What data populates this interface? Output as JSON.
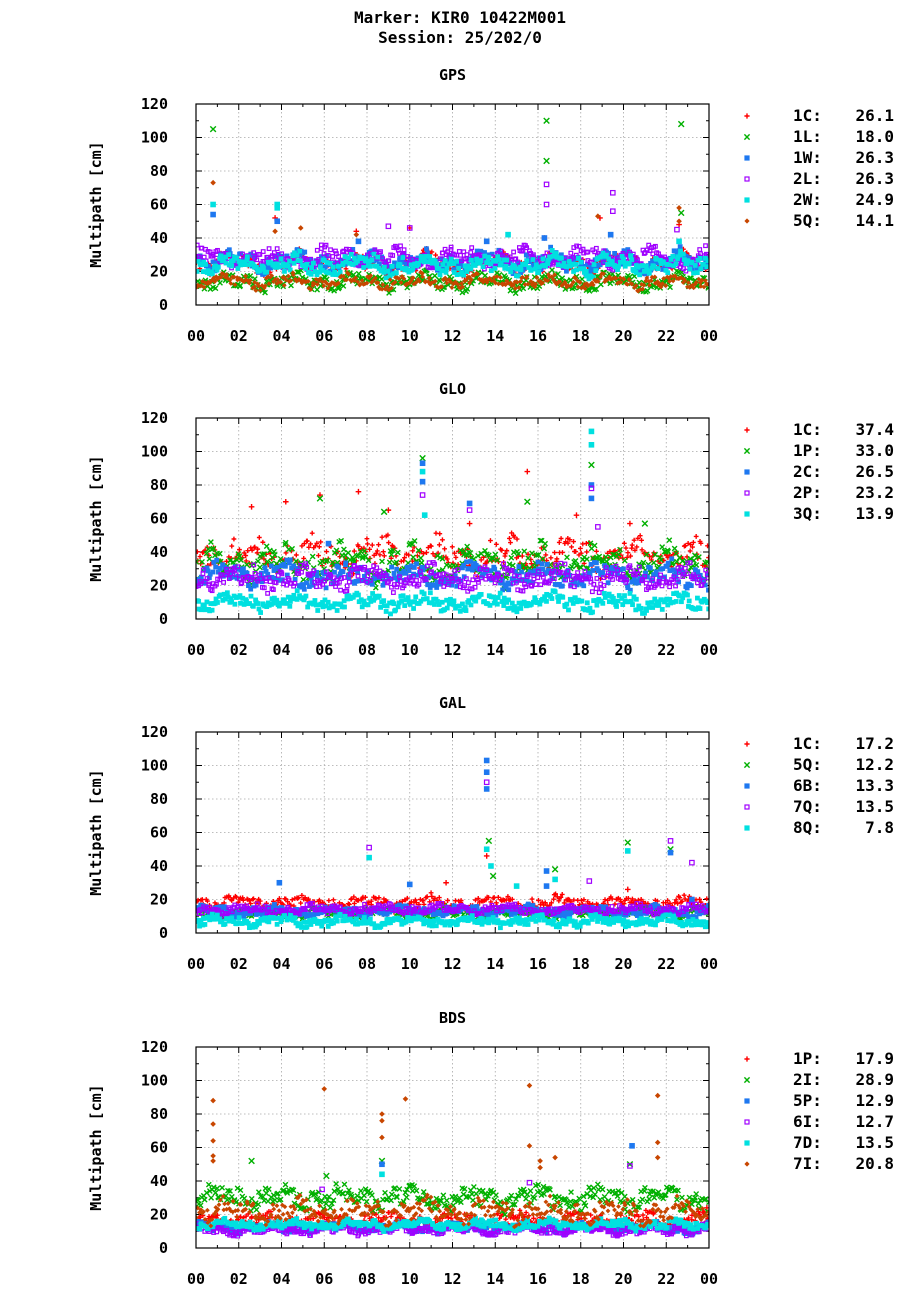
{
  "header": {
    "marker": "Marker: KIR0 10422M001",
    "session": "Session: 25/202/0"
  },
  "chart_data": [
    {
      "type": "scatter",
      "title": "GPS",
      "ylabel": "Multipath [cm]",
      "ylim": [
        0,
        120
      ],
      "yticks": [
        "0",
        "20",
        "40",
        "60",
        "80",
        "100",
        "120"
      ],
      "xlim": [
        0,
        24
      ],
      "xticks": [
        "00",
        "02",
        "04",
        "06",
        "08",
        "10",
        "12",
        "14",
        "16",
        "18",
        "20",
        "22",
        "00"
      ],
      "grid": true,
      "legend_placement": "right",
      "series": [
        {
          "name": "1C",
          "rms": "26.1",
          "marker": "plus",
          "color": "#ff0000",
          "base": 25,
          "spread": 6,
          "outliers": [
            [
              3.7,
              52
            ],
            [
              7.5,
              44
            ],
            [
              10.0,
              46
            ],
            [
              16.3,
              40
            ],
            [
              18.9,
              52
            ],
            [
              22.6,
              48
            ]
          ]
        },
        {
          "name": "1L",
          "rms": "18.0",
          "marker": "cross",
          "color": "#00b000",
          "base": 14,
          "spread": 5,
          "outliers": [
            [
              0.8,
              105
            ],
            [
              16.4,
              110
            ],
            [
              16.4,
              86
            ],
            [
              22.7,
              108
            ],
            [
              22.7,
              55
            ]
          ]
        },
        {
          "name": "1W",
          "rms": "26.3",
          "marker": "square",
          "color": "#1e78f0",
          "base": 26,
          "spread": 6,
          "outliers": [
            [
              0.8,
              54
            ],
            [
              3.8,
              50
            ],
            [
              7.6,
              38
            ],
            [
              13.6,
              38
            ],
            [
              16.3,
              40
            ],
            [
              19.4,
              42
            ]
          ]
        },
        {
          "name": "2L",
          "rms": "26.3",
          "marker": "opensquare",
          "color": "#a000ff",
          "base": 28,
          "spread": 6,
          "outliers": [
            [
              9.0,
              47
            ],
            [
              10.0,
              46
            ],
            [
              16.4,
              72
            ],
            [
              16.4,
              60
            ],
            [
              19.5,
              67
            ],
            [
              19.5,
              56
            ],
            [
              22.5,
              45
            ]
          ]
        },
        {
          "name": "2W",
          "rms": "24.9",
          "marker": "square",
          "color": "#00e0e0",
          "base": 24,
          "spread": 6,
          "outliers": [
            [
              0.8,
              60
            ],
            [
              3.8,
              60
            ],
            [
              3.8,
              58
            ],
            [
              14.6,
              42
            ],
            [
              22.6,
              38
            ]
          ]
        },
        {
          "name": "5Q",
          "rms": "14.1",
          "marker": "diamond",
          "color": "#c84600",
          "base": 14,
          "spread": 4,
          "outliers": [
            [
              0.8,
              73
            ],
            [
              3.7,
              44
            ],
            [
              4.9,
              46
            ],
            [
              7.5,
              42
            ],
            [
              18.8,
              53
            ],
            [
              22.6,
              58
            ],
            [
              22.6,
              50
            ]
          ]
        }
      ]
    },
    {
      "type": "scatter",
      "title": "GLO",
      "ylabel": "Multipath [cm]",
      "ylim": [
        0,
        120
      ],
      "yticks": [
        "0",
        "20",
        "40",
        "60",
        "80",
        "100",
        "120"
      ],
      "xlim": [
        0,
        24
      ],
      "xticks": [
        "00",
        "02",
        "04",
        "06",
        "08",
        "10",
        "12",
        "14",
        "16",
        "18",
        "20",
        "22",
        "00"
      ],
      "grid": true,
      "legend_placement": "right",
      "series": [
        {
          "name": "1C",
          "rms": "37.4",
          "marker": "plus",
          "color": "#ff0000",
          "base": 38,
          "spread": 10,
          "outliers": [
            [
              2.6,
              67
            ],
            [
              4.2,
              70
            ],
            [
              5.8,
              74
            ],
            [
              7.6,
              76
            ],
            [
              9.0,
              65
            ],
            [
              12.8,
              57
            ],
            [
              15.5,
              88
            ],
            [
              17.8,
              62
            ],
            [
              20.3,
              57
            ]
          ]
        },
        {
          "name": "1P",
          "rms": "33.0",
          "marker": "cross",
          "color": "#00b000",
          "base": 33,
          "spread": 10,
          "outliers": [
            [
              5.8,
              72
            ],
            [
              8.8,
              64
            ],
            [
              10.6,
              96
            ],
            [
              15.5,
              70
            ],
            [
              18.5,
              92
            ],
            [
              21.0,
              57
            ]
          ]
        },
        {
          "name": "2C",
          "rms": "26.5",
          "marker": "square",
          "color": "#1e78f0",
          "base": 26,
          "spread": 7,
          "outliers": [
            [
              6.2,
              45
            ],
            [
              10.6,
              93
            ],
            [
              10.6,
              82
            ],
            [
              12.8,
              69
            ],
            [
              18.5,
              80
            ],
            [
              18.5,
              72
            ]
          ]
        },
        {
          "name": "2P",
          "rms": "23.2",
          "marker": "opensquare",
          "color": "#a000ff",
          "base": 25,
          "spread": 7,
          "outliers": [
            [
              10.6,
              74
            ],
            [
              12.8,
              65
            ],
            [
              18.5,
              78
            ],
            [
              18.8,
              55
            ]
          ]
        },
        {
          "name": "3Q",
          "rms": "13.9",
          "marker": "square",
          "color": "#00e0e0",
          "base": 10,
          "spread": 5,
          "outliers": [
            [
              10.6,
              88
            ],
            [
              10.7,
              62
            ],
            [
              18.5,
              112
            ],
            [
              18.5,
              104
            ]
          ]
        }
      ]
    },
    {
      "type": "scatter",
      "title": "GAL",
      "ylabel": "Multipath [cm]",
      "ylim": [
        0,
        120
      ],
      "yticks": [
        "0",
        "20",
        "40",
        "60",
        "80",
        "100",
        "120"
      ],
      "xlim": [
        0,
        24
      ],
      "xticks": [
        "00",
        "02",
        "04",
        "06",
        "08",
        "10",
        "12",
        "14",
        "16",
        "18",
        "20",
        "22",
        "00"
      ],
      "grid": true,
      "legend_placement": "right",
      "series": [
        {
          "name": "1C",
          "rms": "17.2",
          "marker": "plus",
          "color": "#ff0000",
          "base": 18,
          "spread": 4,
          "outliers": [
            [
              11.7,
              30
            ],
            [
              13.6,
              46
            ],
            [
              20.2,
              26
            ]
          ]
        },
        {
          "name": "5Q",
          "rms": "12.2",
          "marker": "cross",
          "color": "#00b000",
          "base": 12,
          "spread": 3,
          "outliers": [
            [
              13.7,
              55
            ],
            [
              13.9,
              34
            ],
            [
              16.8,
              38
            ],
            [
              20.2,
              54
            ],
            [
              22.2,
              50
            ]
          ]
        },
        {
          "name": "6B",
          "rms": "13.3",
          "marker": "square",
          "color": "#1e78f0",
          "base": 13,
          "spread": 3,
          "outliers": [
            [
              3.9,
              30
            ],
            [
              10.0,
              29
            ],
            [
              13.6,
              103
            ],
            [
              13.6,
              96
            ],
            [
              13.6,
              86
            ],
            [
              16.4,
              37
            ],
            [
              16.4,
              28
            ],
            [
              22.2,
              48
            ],
            [
              23.2,
              20
            ]
          ]
        },
        {
          "name": "7Q",
          "rms": "13.5",
          "marker": "opensquare",
          "color": "#a000ff",
          "base": 14,
          "spread": 3,
          "outliers": [
            [
              8.1,
              51
            ],
            [
              13.6,
              90
            ],
            [
              18.4,
              31
            ],
            [
              22.2,
              55
            ],
            [
              23.2,
              42
            ]
          ]
        },
        {
          "name": "8Q",
          "rms": "7.8",
          "marker": "square",
          "color": "#00e0e0",
          "base": 7,
          "spread": 3,
          "outliers": [
            [
              8.1,
              45
            ],
            [
              13.6,
              50
            ],
            [
              13.8,
              40
            ],
            [
              15.0,
              28
            ],
            [
              16.8,
              32
            ],
            [
              20.2,
              49
            ]
          ]
        }
      ]
    },
    {
      "type": "scatter",
      "title": "BDS",
      "ylabel": "Multipath [cm]",
      "ylim": [
        0,
        120
      ],
      "yticks": [
        "0",
        "20",
        "40",
        "60",
        "80",
        "100",
        "120"
      ],
      "xlim": [
        0,
        24
      ],
      "xticks": [
        "00",
        "02",
        "04",
        "06",
        "08",
        "10",
        "12",
        "14",
        "16",
        "18",
        "20",
        "22",
        "00"
      ],
      "grid": true,
      "legend_placement": "right",
      "series": [
        {
          "name": "1P",
          "rms": "17.9",
          "marker": "plus",
          "color": "#ff0000",
          "base": 17,
          "spread": 4,
          "outliers": [
            [
              23.9,
              24
            ]
          ]
        },
        {
          "name": "2I",
          "rms": "28.9",
          "marker": "cross",
          "color": "#00b000",
          "base": 30,
          "spread": 7,
          "outliers": [
            [
              2.6,
              52
            ],
            [
              6.1,
              43
            ],
            [
              8.7,
              52
            ],
            [
              20.3,
              50
            ]
          ]
        },
        {
          "name": "5P",
          "rms": "12.9",
          "marker": "square",
          "color": "#1e78f0",
          "base": 12,
          "spread": 3,
          "outliers": [
            [
              8.7,
              50
            ],
            [
              20.4,
              61
            ]
          ]
        },
        {
          "name": "6I",
          "rms": "12.7",
          "marker": "opensquare",
          "color": "#a000ff",
          "base": 11,
          "spread": 3,
          "outliers": [
            [
              5.9,
              35
            ],
            [
              15.6,
              39
            ],
            [
              20.3,
              49
            ]
          ]
        },
        {
          "name": "7D",
          "rms": "13.5",
          "marker": "square",
          "color": "#00e0e0",
          "base": 14,
          "spread": 3,
          "outliers": [
            [
              8.7,
              44
            ]
          ]
        },
        {
          "name": "7I",
          "rms": "20.8",
          "marker": "diamond",
          "color": "#c84600",
          "base": 22,
          "spread": 7,
          "outliers": [
            [
              0.8,
              88
            ],
            [
              0.8,
              74
            ],
            [
              0.8,
              64
            ],
            [
              0.8,
              55
            ],
            [
              0.8,
              52
            ],
            [
              6.0,
              95
            ],
            [
              8.7,
              80
            ],
            [
              8.7,
              76
            ],
            [
              8.7,
              66
            ],
            [
              9.8,
              89
            ],
            [
              15.6,
              97
            ],
            [
              15.6,
              61
            ],
            [
              16.1,
              52
            ],
            [
              16.1,
              48
            ],
            [
              16.8,
              54
            ],
            [
              21.6,
              91
            ],
            [
              21.6,
              63
            ],
            [
              21.6,
              54
            ]
          ]
        }
      ]
    }
  ]
}
